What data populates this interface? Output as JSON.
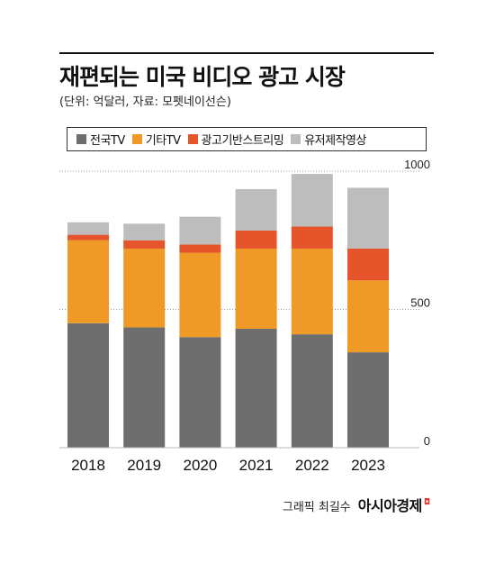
{
  "title": "재편되는 미국 비디오 광고 시장",
  "subtitle": "(단위: 억달러, 자료: 모펫네이선슨)",
  "footer": {
    "credit": "그래픽 최길수",
    "brand": "아시아경제"
  },
  "colors": {
    "broadcast": "#6e6e6e",
    "other": "#ef9a27",
    "ad_streaming": "#e5542a",
    "paid_streaming": "#bdbdbd",
    "grid": "#9a9a9a"
  },
  "chart_data": {
    "type": "bar",
    "stacked": true,
    "categories": [
      "2018",
      "2019",
      "2020",
      "2021",
      "2022",
      "2023"
    ],
    "series": [
      {
        "name": "전국TV",
        "color": "#6e6e6e",
        "values": [
          450,
          435,
          400,
          430,
          410,
          345
        ]
      },
      {
        "name": "기타TV",
        "color": "#ef9a27",
        "values": [
          300,
          285,
          305,
          290,
          310,
          260
        ]
      },
      {
        "name": "광고기반스트리밍",
        "color": "#e5542a",
        "values": [
          20,
          30,
          30,
          65,
          80,
          115
        ]
      },
      {
        "name": "유저제작영상",
        "color": "#bdbdbd",
        "values": [
          45,
          60,
          100,
          150,
          190,
          220
        ]
      }
    ],
    "y_ticks": [
      0,
      500,
      1000
    ],
    "ylim": [
      0,
      1000
    ],
    "gridlines": "dotted",
    "legend": "top"
  }
}
